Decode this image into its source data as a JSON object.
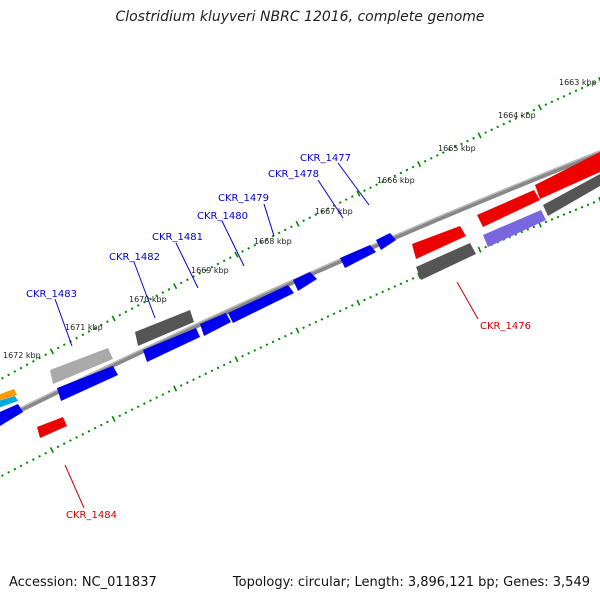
{
  "title": "Clostridium kluyveri NBRC 12016, complete genome",
  "footer": {
    "accession": "Accession: NC_011837",
    "summary": "Topology: circular; Length: 3,896,121 bp; Genes: 3,549"
  },
  "kbp_labels": [
    "1663 kbp",
    "1664 kbp",
    "1665 kbp",
    "1666 kbp",
    "1667 kbp",
    "1668 kbp",
    "1669 kbp",
    "1670 kbp",
    "1671 kbp",
    "1672 kbp"
  ],
  "gene_labels": [
    {
      "name": "CKR_1477",
      "color": "#0000cc"
    },
    {
      "name": "CKR_1478",
      "color": "#0000cc"
    },
    {
      "name": "CKR_1479",
      "color": "#0000cc"
    },
    {
      "name": "CKR_1480",
      "color": "#0000cc"
    },
    {
      "name": "CKR_1481",
      "color": "#0000cc"
    },
    {
      "name": "CKR_1482",
      "color": "#0000cc"
    },
    {
      "name": "CKR_1483",
      "color": "#0000cc"
    },
    {
      "name": "CKR_1476",
      "color": "#cc0000"
    },
    {
      "name": "CKR_1484",
      "color": "#cc0000"
    }
  ],
  "colors": {
    "forward_gene": "#0000ee",
    "reverse_gene": "#ee0000",
    "pseudo_gene": "#555555",
    "light_gene": "#aaaaaa",
    "purple_gene": "#7766dd",
    "backbone": "#888888",
    "tick": "#008800"
  }
}
